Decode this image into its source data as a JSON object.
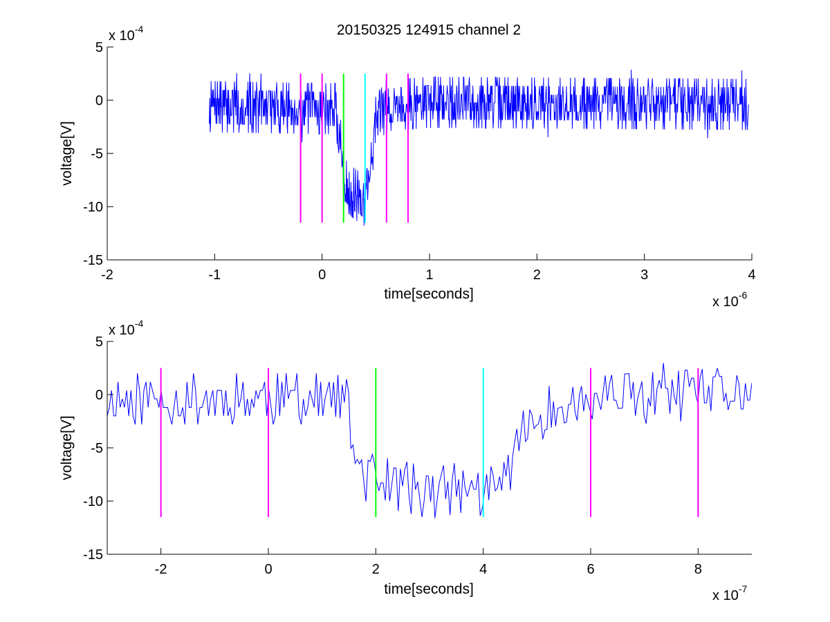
{
  "figure_title": "20150325 124915 channel 2",
  "chart_data": [
    {
      "type": "line",
      "title": "20150325 124915 channel 2",
      "xlabel": "time[seconds]",
      "ylabel": "voltage[V]",
      "x_multiplier_base": "x 10",
      "x_multiplier_exp": "-6",
      "y_multiplier_base": "x 10",
      "y_multiplier_exp": "-4",
      "xlim": [
        -2,
        4
      ],
      "ylim": [
        -15,
        5
      ],
      "xticks": [
        -2,
        -1,
        0,
        1,
        2,
        3,
        4
      ],
      "xtick_labels": [
        "-2",
        "-1",
        "0",
        "1",
        "2",
        "3",
        "4"
      ],
      "yticks": [
        5,
        0,
        -5,
        -10,
        -15
      ],
      "ytick_labels": [
        "5",
        "0",
        "-5",
        "-10",
        "-15"
      ],
      "grid": false,
      "signal": {
        "color": "#0000ff",
        "x_start": -1.05,
        "x_end": 3.97,
        "points": 1200,
        "seed": 7,
        "noise_step": 0.8,
        "noise_levels": 3,
        "profile": [
          [
            -1.05,
            -0.6
          ],
          [
            0.0,
            -0.8
          ],
          [
            0.13,
            -0.8
          ],
          [
            0.2,
            -7.8
          ],
          [
            0.3,
            -8.8
          ],
          [
            0.39,
            -9.4
          ],
          [
            0.44,
            -7.0
          ],
          [
            0.5,
            -2.0
          ],
          [
            0.6,
            -0.5
          ],
          [
            1.0,
            -0.2
          ],
          [
            3.97,
            -0.4
          ]
        ]
      },
      "markers": [
        {
          "x": -0.2,
          "y_top": 2.5,
          "y_bottom": -11.5,
          "color": "#ff00ff"
        },
        {
          "x": 0.0,
          "y_top": 2.5,
          "y_bottom": -11.5,
          "color": "#ff00ff"
        },
        {
          "x": 0.2,
          "y_top": 2.5,
          "y_bottom": -11.5,
          "color": "#00ff00"
        },
        {
          "x": 0.4,
          "y_top": 2.5,
          "y_bottom": -11.5,
          "color": "#00ffff"
        },
        {
          "x": 0.6,
          "y_top": 2.5,
          "y_bottom": -11.5,
          "color": "#ff00ff"
        },
        {
          "x": 0.8,
          "y_top": 2.5,
          "y_bottom": -11.5,
          "color": "#ff00ff"
        }
      ]
    },
    {
      "type": "line",
      "xlabel": "time[seconds]",
      "ylabel": "voltage[V]",
      "x_multiplier_base": "x 10",
      "x_multiplier_exp": "-7",
      "y_multiplier_base": "x 10",
      "y_multiplier_exp": "-4",
      "xlim": [
        -3,
        9
      ],
      "ylim": [
        -15,
        5
      ],
      "xticks": [
        -2,
        0,
        2,
        4,
        6,
        8
      ],
      "xtick_labels": [
        "-2",
        "0",
        "2",
        "4",
        "6",
        "8"
      ],
      "yticks": [
        5,
        0,
        -5,
        -10,
        -15
      ],
      "ytick_labels": [
        "5",
        "0",
        "-5",
        "-10",
        "-15"
      ],
      "grid": false,
      "signal": {
        "color": "#0000ff",
        "x_start": -3,
        "x_end": 9,
        "points": 300,
        "seed": 11,
        "noise_step": 0.8,
        "noise_levels": 3,
        "profile": [
          [
            -3.0,
            -0.4
          ],
          [
            1.2,
            -0.4
          ],
          [
            1.45,
            -0.8
          ],
          [
            1.6,
            -5.5
          ],
          [
            1.8,
            -7.6
          ],
          [
            2.0,
            -8.2
          ],
          [
            2.5,
            -8.6
          ],
          [
            3.0,
            -9.3
          ],
          [
            3.6,
            -8.7
          ],
          [
            4.2,
            -9.2
          ],
          [
            4.45,
            -7.5
          ],
          [
            4.6,
            -5.0
          ],
          [
            5.0,
            -2.0
          ],
          [
            5.6,
            -0.9
          ],
          [
            6.5,
            -0.5
          ],
          [
            9.0,
            0.3
          ]
        ]
      },
      "markers": [
        {
          "x": -2,
          "y_top": 2.5,
          "y_bottom": -11.5,
          "color": "#ff00ff"
        },
        {
          "x": 0,
          "y_top": 2.5,
          "y_bottom": -11.5,
          "color": "#ff00ff"
        },
        {
          "x": 2,
          "y_top": 2.5,
          "y_bottom": -11.5,
          "color": "#00ff00"
        },
        {
          "x": 4,
          "y_top": 2.5,
          "y_bottom": -11.5,
          "color": "#00ffff"
        },
        {
          "x": 6,
          "y_top": 2.5,
          "y_bottom": -11.5,
          "color": "#ff00ff"
        },
        {
          "x": 8,
          "y_top": 2.5,
          "y_bottom": -11.5,
          "color": "#ff00ff"
        }
      ]
    }
  ]
}
